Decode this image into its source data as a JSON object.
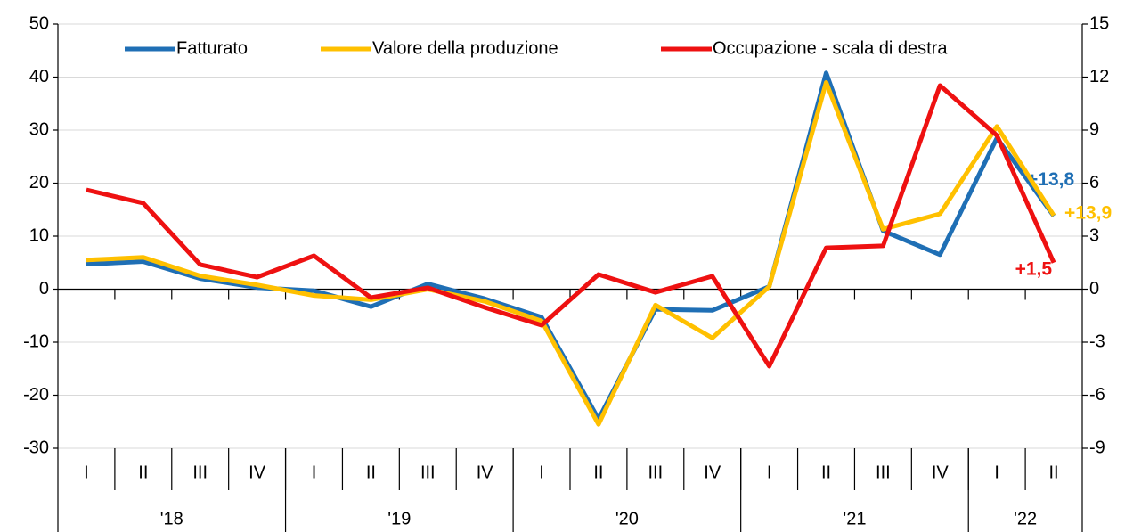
{
  "chart_data": {
    "type": "line",
    "categories": [
      "I",
      "II",
      "III",
      "IV",
      "I",
      "II",
      "III",
      "IV",
      "I",
      "II",
      "III",
      "IV",
      "I",
      "II",
      "III",
      "IV",
      "I",
      "II"
    ],
    "year_groups": [
      {
        "label": "'18",
        "count": 4
      },
      {
        "label": "'19",
        "count": 4
      },
      {
        "label": "'20",
        "count": 4
      },
      {
        "label": "'21",
        "count": 4
      },
      {
        "label": "'22",
        "count": 2
      }
    ],
    "series": [
      {
        "name": "Fatturato",
        "color": "#1f6fb5",
        "values": [
          4.7,
          5.2,
          2,
          0.3,
          -0.3,
          -3.3,
          1,
          -1.8,
          -5.3,
          -24.5,
          -3.8,
          -4,
          0.5,
          40.8,
          11,
          6.5,
          28.5,
          13.8
        ],
        "end_label": "+13,8"
      },
      {
        "name": "Valore della produzione",
        "color": "#ffc000",
        "values": [
          5.5,
          6,
          2.5,
          0.8,
          -1.2,
          -2,
          0,
          -2.3,
          -6,
          -25.5,
          -3,
          -9.2,
          0.5,
          39,
          11.3,
          14.2,
          30.7,
          13.9
        ],
        "end_label": "+13,9"
      },
      {
        "name": "Occupazione - scala di destra",
        "color": "#ee1111",
        "axis": "y2",
        "values": [
          5.62,
          4.87,
          1.39,
          0.68,
          1.89,
          -0.48,
          0.08,
          -1.03,
          -2.04,
          0.83,
          -0.18,
          0.73,
          -4.36,
          2.34,
          2.45,
          11.52,
          8.7,
          1.5
        ],
        "end_label": "+1,5"
      }
    ],
    "ylim": [
      -30,
      50
    ],
    "yticks": [
      -30,
      -20,
      -10,
      0,
      10,
      20,
      30,
      40,
      50
    ],
    "y2lim": [
      -9,
      15
    ],
    "y2ticks": [
      -9,
      -6,
      -3,
      0,
      3,
      6,
      9,
      12,
      15
    ],
    "grid": true,
    "legend": "top"
  }
}
